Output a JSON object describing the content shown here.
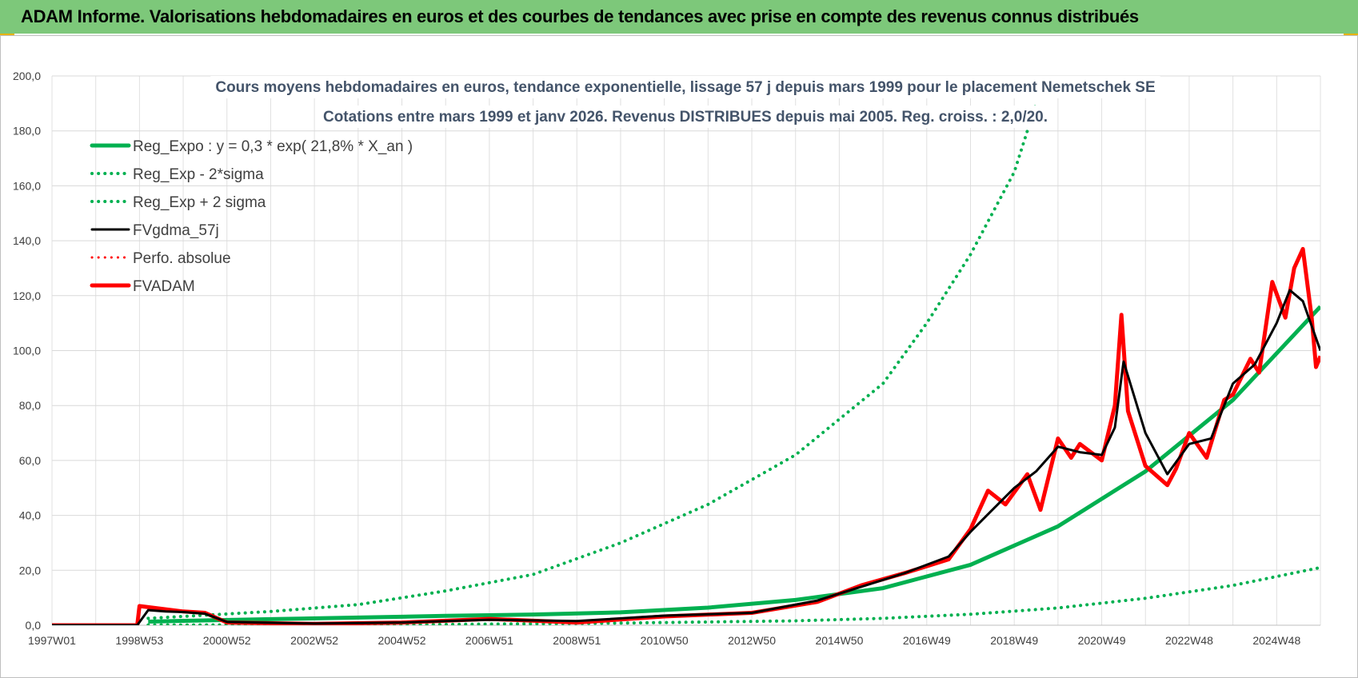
{
  "header": {
    "title": "ADAM Informe. Valorisations hebdomadaires en euros et des courbes de tendances avec prise en compte des revenus connus distribués"
  },
  "chart_data": {
    "type": "line",
    "title": "",
    "subtitle_lines": [
      "Cours moyens  hebdomadaires en euros, tendance exponentielle, lissage 57 j depuis mars 1999 pour le placement Nemetschek SE",
      "Cotations entre mars 1999 et janv 2026. Revenus DISTRIBUES depuis mai 2005. Reg. croiss. : 2,0/20."
    ],
    "xlabel": "",
    "ylabel": "",
    "ylim": [
      0,
      200
    ],
    "xlim": [
      1997.0,
      2026.0
    ],
    "y_ticks": [
      "0,0",
      "20,0",
      "40,0",
      "60,0",
      "80,0",
      "100,0",
      "120,0",
      "140,0",
      "160,0",
      "180,0",
      "200,0"
    ],
    "x_ticks": [
      "1997W01",
      "1998W53",
      "2000W52",
      "2002W52",
      "2004W52",
      "2006W51",
      "2008W51",
      "2010W50",
      "2012W50",
      "2014W50",
      "2016W49",
      "2018W49",
      "2020W49",
      "2022W48",
      "2024W48"
    ],
    "x_tick_years": [
      1997.0,
      1999.0,
      2001.0,
      2003.0,
      2005.0,
      2007.0,
      2009.0,
      2011.0,
      2013.0,
      2015.0,
      2017.0,
      2019.0,
      2021.0,
      2023.0,
      2025.0
    ],
    "grid": true,
    "legend_position": "top-left",
    "series": [
      {
        "name": "Reg_Expo : y = 0,3 * exp( 21,8% *  X_an )",
        "color": "#00b050",
        "style": "solid",
        "width": 5,
        "x": [
          1999.2,
          2000,
          2002,
          2004,
          2006,
          2008,
          2010,
          2012,
          2014,
          2016,
          2018,
          2020,
          2022,
          2024,
          2026.0
        ],
        "y": [
          1.3,
          1.6,
          2.2,
          2.8,
          3.4,
          3.9,
          4.7,
          6.4,
          9.2,
          13.5,
          22.0,
          36.0,
          56.0,
          82.0,
          116.0
        ]
      },
      {
        "name": "Reg_Exp - 2*sigma",
        "color": "#00b050",
        "style": "dotted",
        "width": 4,
        "x": [
          1999.2,
          2002,
          2006,
          2010,
          2014,
          2016,
          2018,
          2020,
          2022,
          2024,
          2026.0
        ],
        "y": [
          0.1,
          0.15,
          0.3,
          0.8,
          1.6,
          2.5,
          4.0,
          6.3,
          9.8,
          14.5,
          21.0
        ]
      },
      {
        "name": "Reg_Exp + 2 sigma",
        "color": "#00b050",
        "style": "dotted",
        "width": 4,
        "x": [
          1999.2,
          2000,
          2002,
          2004,
          2006,
          2008,
          2010,
          2012,
          2014,
          2016,
          2017,
          2018,
          2019,
          2019.5
        ],
        "y": [
          2.5,
          3.2,
          5.0,
          7.5,
          12.5,
          18.5,
          30.0,
          44.0,
          62.0,
          88.0,
          110.0,
          135.0,
          165.0,
          190.0
        ]
      },
      {
        "name": "FVgdma_57j",
        "color": "#000000",
        "style": "solid",
        "width": 3,
        "x": [
          1997.0,
          1998.95,
          1999.2,
          1999.6,
          2000.0,
          2000.5,
          2001.0,
          2003,
          2005,
          2007,
          2009,
          2011,
          2013,
          2014.5,
          2015.5,
          2016.5,
          2017.5,
          2018.0,
          2018.5,
          2019.0,
          2019.5,
          2020.0,
          2020.5,
          2021.0,
          2021.3,
          2021.5,
          2022.0,
          2022.5,
          2023.0,
          2023.5,
          2024.0,
          2024.5,
          2025.0,
          2025.3,
          2025.6,
          2026.0
        ],
        "y": [
          0.0,
          0.0,
          5.5,
          5.0,
          4.8,
          4.2,
          1.2,
          0.6,
          1.0,
          2.0,
          1.5,
          3.5,
          4.5,
          9.0,
          14.0,
          19.0,
          25.0,
          34.0,
          42.0,
          50.0,
          56.0,
          65.0,
          63.0,
          62.0,
          72.0,
          96.0,
          70.0,
          55.0,
          66.0,
          68.0,
          88.0,
          95.0,
          110.0,
          122.0,
          118.0,
          100.0
        ]
      },
      {
        "name": "Perfo. absolue",
        "color": "#ff0000",
        "style": "dotted",
        "width": 3,
        "x": [
          1997.0,
          1998.95,
          1999.0,
          2000.0,
          2000.5,
          2001.0,
          2003,
          2005,
          2007,
          2009,
          2011,
          2013,
          2014.5,
          2015.5,
          2016.5,
          2017.5,
          2018.0,
          2018.4,
          2018.8,
          2019.3,
          2019.6,
          2020.0,
          2020.3,
          2020.5,
          2021.0,
          2021.3,
          2021.45,
          2021.6,
          2022.0,
          2022.5,
          2022.7,
          2023.0,
          2023.4,
          2023.8,
          2024.0,
          2024.4,
          2024.6,
          2024.9,
          2025.2,
          2025.4,
          2025.6,
          2025.8,
          2025.9,
          2026.0
        ],
        "y": [
          0.0,
          0.0,
          7.0,
          5.0,
          4.5,
          1.0,
          0.5,
          1.0,
          2.3,
          1.0,
          3.2,
          4.5,
          8.5,
          14.5,
          19.0,
          24.0,
          35.0,
          49.0,
          44.0,
          55.0,
          42.0,
          68.0,
          61.0,
          66.0,
          60.0,
          80.0,
          113.0,
          78.0,
          58.0,
          51.0,
          57.0,
          70.0,
          61.0,
          82.0,
          84.0,
          97.0,
          92.0,
          125.0,
          112.0,
          130.0,
          137.0,
          112.0,
          94.0,
          98.0
        ]
      },
      {
        "name": "FVADAM",
        "color": "#ff0000",
        "style": "solid",
        "width": 5,
        "x": [
          1997.0,
          1998.95,
          1999.0,
          2000.0,
          2000.5,
          2001.0,
          2003,
          2005,
          2007,
          2009,
          2011,
          2013,
          2014.5,
          2015.5,
          2016.5,
          2017.5,
          2018.0,
          2018.4,
          2018.8,
          2019.3,
          2019.6,
          2020.0,
          2020.3,
          2020.5,
          2021.0,
          2021.3,
          2021.45,
          2021.6,
          2022.0,
          2022.5,
          2022.7,
          2023.0,
          2023.4,
          2023.8,
          2024.0,
          2024.4,
          2024.6,
          2024.9,
          2025.2,
          2025.4,
          2025.6,
          2025.8,
          2025.9,
          2026.0
        ],
        "y": [
          0.0,
          0.0,
          7.0,
          5.0,
          4.5,
          1.0,
          0.5,
          1.0,
          2.3,
          1.0,
          3.2,
          4.5,
          8.5,
          14.5,
          19.0,
          24.0,
          35.0,
          49.0,
          44.0,
          55.0,
          42.0,
          68.0,
          61.0,
          66.0,
          60.0,
          80.0,
          113.0,
          78.0,
          58.0,
          51.0,
          57.0,
          70.0,
          61.0,
          82.0,
          84.0,
          97.0,
          92.0,
          125.0,
          112.0,
          130.0,
          137.0,
          112.0,
          94.0,
          98.0
        ]
      }
    ]
  }
}
